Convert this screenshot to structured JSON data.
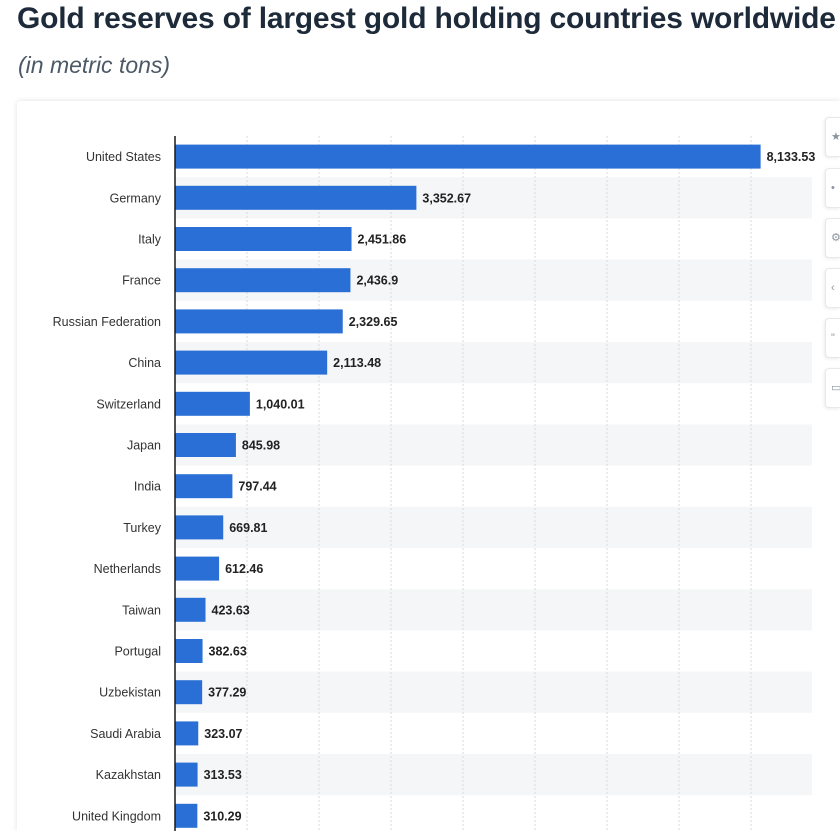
{
  "header": {
    "title": "Gold reserves of largest gold holding countries worldwide",
    "subtitle": "(in metric tons)"
  },
  "toolbar": {
    "buttons": [
      {
        "icon": "star-icon"
      },
      {
        "icon": "bell-icon"
      },
      {
        "icon": "settings-icon"
      },
      {
        "icon": "share-icon"
      },
      {
        "icon": "quote-icon"
      },
      {
        "icon": "print-icon"
      }
    ]
  },
  "colors": {
    "bar": "#2a6fd6",
    "band": "#f5f6f7",
    "grid": "#d6d9dd",
    "axis": "#1a1a1a",
    "label": "#333333"
  },
  "chart_data": {
    "type": "bar",
    "orientation": "horizontal",
    "title": "Gold reserves of largest gold holding countries worldwide",
    "subtitle": "(in metric tons)",
    "categories": [
      "United States",
      "Germany",
      "Italy",
      "France",
      "Russian Federation",
      "China",
      "Switzerland",
      "Japan",
      "India",
      "Turkey",
      "Netherlands",
      "Taiwan",
      "Portugal",
      "Uzbekistan",
      "Saudi Arabia",
      "Kazakhstan",
      "United Kingdom"
    ],
    "values": [
      8133.53,
      3352.67,
      2451.86,
      2436.9,
      2329.65,
      2113.48,
      1040.01,
      845.98,
      797.44,
      669.81,
      612.46,
      423.63,
      382.63,
      377.29,
      323.07,
      313.53,
      310.29
    ],
    "value_labels": [
      "8,133.53",
      "3,352.67",
      "2,451.86",
      "2,436.9",
      "2,329.65",
      "2,113.48",
      "1,040.01",
      "845.98",
      "797.44",
      "669.81",
      "612.46",
      "423.63",
      "382.63",
      "377.29",
      "323.07",
      "313.53",
      "310.29"
    ],
    "xlim": [
      0,
      9000
    ],
    "grid": true,
    "legend": "none"
  }
}
